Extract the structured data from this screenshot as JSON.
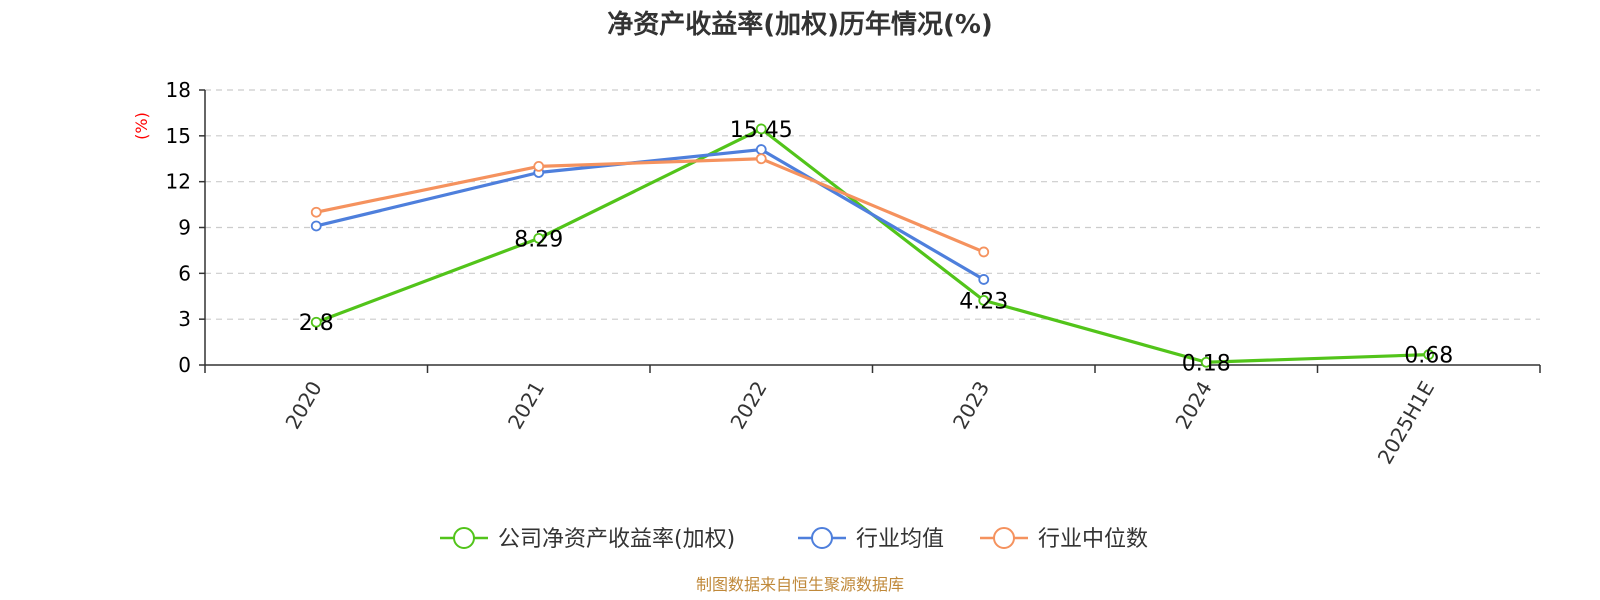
{
  "chart_data": {
    "type": "line",
    "title": "净资产收益率(加权)历年情况(%)",
    "ylabel": "(%)",
    "categories": [
      "2020",
      "2021",
      "2022",
      "2023",
      "2024",
      "2025H1E"
    ],
    "yticks": [
      0,
      3,
      6,
      9,
      12,
      15,
      18
    ],
    "ylim": [
      0,
      18
    ],
    "grid": true,
    "legend_position": "bottom",
    "series": [
      {
        "name": "公司净资产收益率(加权)",
        "color": "#52c41a",
        "values": [
          2.8,
          8.29,
          15.45,
          4.23,
          0.18,
          0.68
        ],
        "labels": [
          "2.8",
          "8.29",
          "15.45",
          "4.23",
          "0.18",
          "0.68"
        ]
      },
      {
        "name": "行业均值",
        "color": "#4e7fdc",
        "values": [
          9.1,
          12.6,
          14.1,
          5.6,
          null,
          null
        ]
      },
      {
        "name": "行业中位数",
        "color": "#f5925e",
        "values": [
          10.0,
          13.0,
          13.5,
          7.4,
          null,
          null
        ]
      }
    ]
  },
  "source": "制图数据来自恒生聚源数据库"
}
